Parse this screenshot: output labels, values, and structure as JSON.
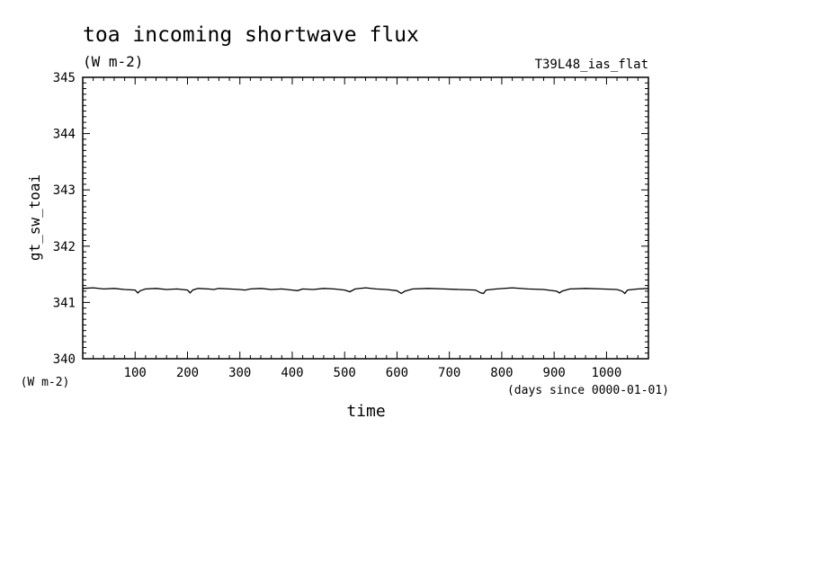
{
  "chart_data": {
    "type": "line",
    "title": "toa incoming shortwave flux",
    "subtitle": "(W m-2)",
    "run_label": "T39L48_ias_flat",
    "xlabel": "time",
    "x_units": "(days since 0000-01-01)",
    "ylabel": "gt_sw_toai",
    "y_units": "(W m-2)",
    "xlim": [
      0,
      1080
    ],
    "ylim": [
      340,
      345
    ],
    "x_ticks": [
      100,
      200,
      300,
      400,
      500,
      600,
      700,
      800,
      900,
      1000
    ],
    "x_tick_labels": [
      "100",
      "200",
      "300",
      "400",
      "500",
      "600",
      "700",
      "800",
      "900",
      "1000"
    ],
    "y_ticks": [
      340,
      341,
      342,
      343,
      344,
      345
    ],
    "y_tick_labels": [
      "340",
      "341",
      "342",
      "343",
      "344",
      "345"
    ],
    "grid": false,
    "series": [
      {
        "x": [
          0,
          20,
          40,
          60,
          80,
          100,
          105,
          110,
          120,
          140,
          160,
          180,
          200,
          205,
          210,
          220,
          240,
          250,
          260,
          280,
          300,
          310,
          320,
          340,
          360,
          380,
          400,
          410,
          420,
          440,
          460,
          480,
          500,
          510,
          520,
          540,
          560,
          580,
          600,
          608,
          615,
          630,
          660,
          690,
          720,
          750,
          760,
          765,
          770,
          790,
          820,
          850,
          880,
          905,
          910,
          915,
          930,
          960,
          990,
          1020,
          1030,
          1035,
          1040,
          1060,
          1080
        ],
        "values": [
          341.25,
          341.26,
          341.24,
          341.25,
          341.23,
          341.22,
          341.17,
          341.21,
          341.24,
          341.25,
          341.23,
          341.24,
          341.22,
          341.17,
          341.22,
          341.25,
          341.24,
          341.23,
          341.25,
          341.24,
          341.23,
          341.22,
          341.24,
          341.25,
          341.23,
          341.24,
          341.22,
          341.21,
          341.24,
          341.23,
          341.25,
          341.24,
          341.22,
          341.19,
          341.24,
          341.26,
          341.24,
          341.23,
          341.21,
          341.16,
          341.2,
          341.24,
          341.25,
          341.24,
          341.23,
          341.22,
          341.17,
          341.16,
          341.22,
          341.24,
          341.26,
          341.24,
          341.23,
          341.2,
          341.17,
          341.2,
          341.24,
          341.25,
          341.24,
          341.23,
          341.2,
          341.16,
          341.22,
          341.24,
          341.25
        ]
      }
    ]
  }
}
